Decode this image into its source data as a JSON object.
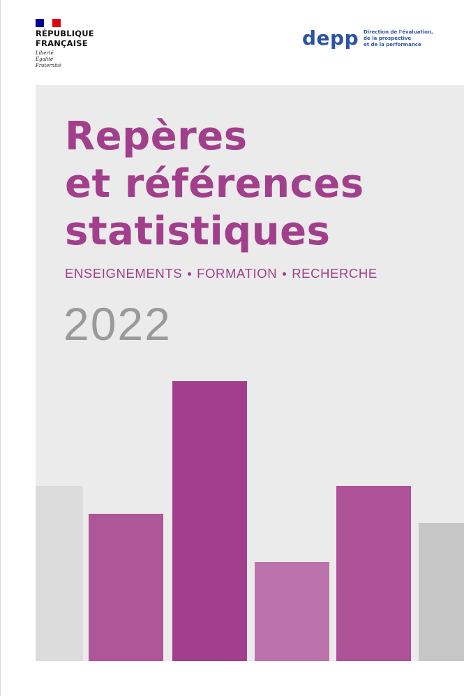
{
  "header": {
    "republic_name": "RÉPUBLIQUE\nFRANÇAISE",
    "motto": "Liberté\nÉgalité\nFraternité",
    "flag_colors": [
      "#000091",
      "#ffffff",
      "#e1000f"
    ],
    "depp_word": "depp",
    "depp_subtitle": "Direction de l'évaluation,\nde la prospective\net de la performance",
    "depp_color": "#2b53a5"
  },
  "cover": {
    "title_lines": [
      "Repères",
      "et références",
      "statistiques"
    ],
    "subtitle_items": [
      "ENSEIGNEMENTS",
      "FORMATION",
      "RECHERCHE"
    ],
    "year": "2022",
    "accent_color": "#a23f8c",
    "panel_color": "#ebebeb"
  },
  "decorative_bars": [
    {
      "color": "#dcdcdc",
      "level": 0.62
    },
    {
      "color": "#ae5698",
      "level": 0.52
    },
    {
      "color": "#a23f8c",
      "level": 0.99
    },
    {
      "color": "#bc72ab",
      "level": 0.35
    },
    {
      "color": "#ad5297",
      "level": 0.62
    },
    {
      "color": "#c6c6c6",
      "level": 0.49
    }
  ]
}
